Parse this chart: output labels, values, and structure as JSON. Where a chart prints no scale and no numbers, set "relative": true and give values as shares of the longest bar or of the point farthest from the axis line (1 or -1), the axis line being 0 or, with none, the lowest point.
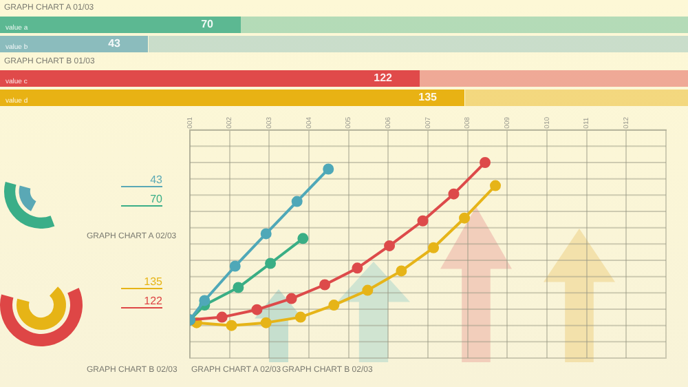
{
  "chart_data": [
    {
      "type": "bar",
      "orientation": "horizontal",
      "title": "GRAPH CHART A 01/03",
      "categories": [
        "value a",
        "value b"
      ],
      "values": [
        70,
        43
      ],
      "colors": [
        "#5cb892",
        "#8bbcbd"
      ],
      "data_labels": true,
      "xlim": [
        0,
        200
      ],
      "tick_labels": false
    },
    {
      "type": "bar",
      "orientation": "horizontal",
      "title": "GRAPH CHART B 01/03",
      "categories": [
        "value c",
        "value d"
      ],
      "values": [
        122,
        135
      ],
      "colors": [
        "#e04a4a",
        "#e8b214"
      ],
      "data_labels": true,
      "xlim": [
        0,
        200
      ],
      "tick_labels": false
    },
    {
      "type": "other",
      "title": "GRAPH CHART A 02/03",
      "values": [
        43,
        70
      ],
      "colors": [
        "#5aa8b5",
        "#3aae88"
      ],
      "data_labels": true
    },
    {
      "type": "other",
      "title": "GRAPH CHART B 02/03",
      "values": [
        135,
        122
      ],
      "colors": [
        "#e6b416",
        "#de4646"
      ],
      "data_labels": true
    },
    {
      "type": "line",
      "relative": true,
      "xlim": [
        1,
        13
      ],
      "xticks": [
        {
          "value": 1,
          "label": "001"
        },
        {
          "value": 2,
          "label": "002"
        },
        {
          "value": 3,
          "label": "003"
        },
        {
          "value": 4,
          "label": "004"
        },
        {
          "value": 5,
          "label": "005"
        },
        {
          "value": 6,
          "label": "006"
        },
        {
          "value": 7,
          "label": "007"
        },
        {
          "value": 8,
          "label": "008"
        },
        {
          "value": 9,
          "label": "009"
        },
        {
          "value": 10,
          "label": "010"
        },
        {
          "value": 11,
          "label": "011"
        },
        {
          "value": 12,
          "label": "012"
        }
      ],
      "tick_labels": "x",
      "grid": true,
      "marker": "circle",
      "annotations": [
        "GRAPH CHART A 02/03",
        "GRAPH CHART B 02/03"
      ],
      "series": [
        {
          "color": "#4fa8b8",
          "x": [
            1,
            1.37,
            2.14,
            2.92,
            3.7,
            4.49
          ],
          "values": [
            0.034,
            0.153,
            0.364,
            0.563,
            0.761,
            0.96
          ]
        },
        {
          "color": "#3aae85",
          "x": [
            1,
            1.37,
            2.22,
            3.03,
            3.85
          ],
          "values": [
            0.034,
            0.125,
            0.233,
            0.381,
            0.534
          ]
        },
        {
          "color": "#dd4a4a",
          "x": [
            1,
            1.81,
            2.69,
            3.56,
            4.4,
            5.22,
            6.03,
            6.87,
            7.65,
            8.44
          ],
          "values": [
            0.034,
            0.051,
            0.097,
            0.165,
            0.25,
            0.352,
            0.489,
            0.642,
            0.807,
            1
          ]
        },
        {
          "color": "#e6b418",
          "x": [
            1.17,
            2.05,
            2.92,
            3.79,
            4.63,
            5.48,
            6.33,
            7.14,
            7.92,
            8.7
          ],
          "values": [
            0.017,
            0,
            0.017,
            0.051,
            0.125,
            0.216,
            0.335,
            0.477,
            0.659,
            0.858
          ]
        }
      ]
    }
  ]
}
